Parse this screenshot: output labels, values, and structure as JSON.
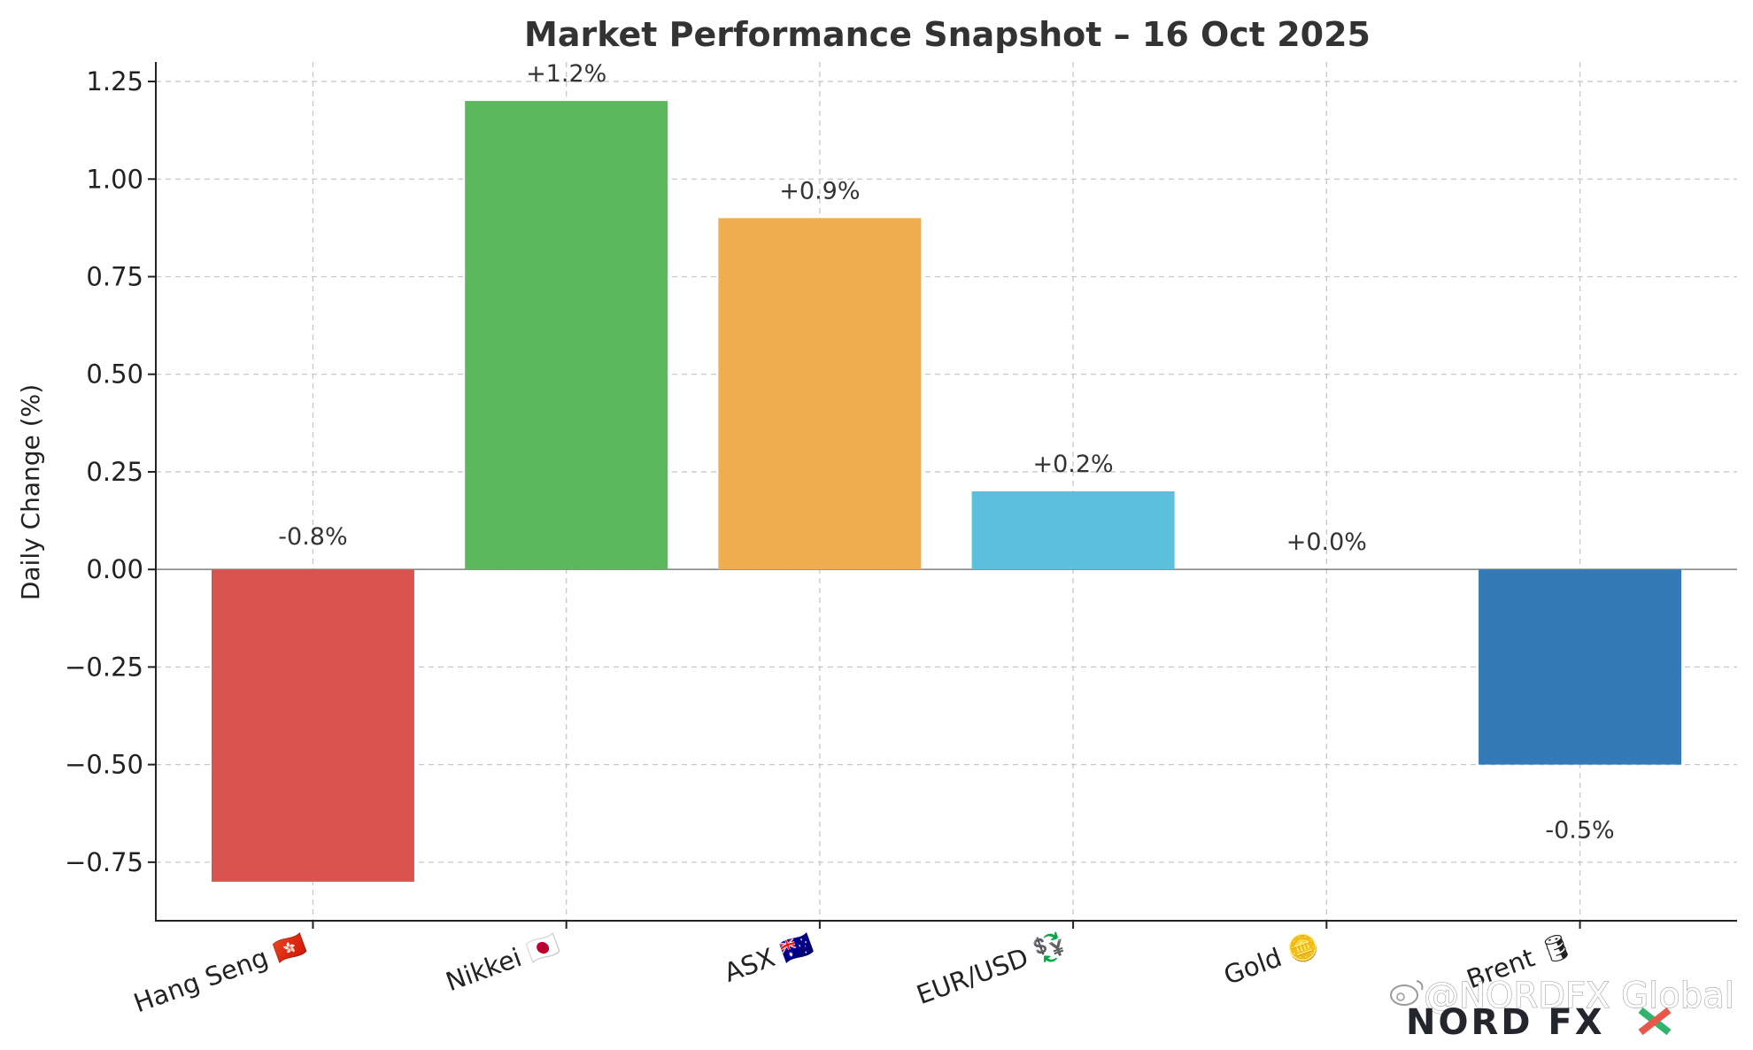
{
  "chart_data": {
    "type": "bar",
    "title": "Market Performance Snapshot – 16 Oct 2025",
    "xlabel": "",
    "ylabel": "Daily Change (%)",
    "categories": [
      "Hang Seng 🇭🇰",
      "Nikkei 🇯🇵",
      "ASX 🇦🇺",
      "EUR/USD 💱",
      "Gold 🪙",
      "Brent 🛢"
    ],
    "values": [
      -0.8,
      1.2,
      0.9,
      0.2,
      0.0,
      -0.5
    ],
    "data_labels": [
      "-0.8%",
      "+1.2%",
      "+0.9%",
      "+0.2%",
      "+0.0%",
      "-0.5%"
    ],
    "colors": [
      "#d9534f",
      "#5cb85c",
      "#f0ad4e",
      "#5bc0de",
      "#808080",
      "#337ab7"
    ],
    "ylim": [
      -0.9,
      1.3
    ],
    "yticks": [
      -0.75,
      -0.5,
      -0.25,
      0.0,
      0.25,
      0.5,
      0.75,
      1.0,
      1.25
    ],
    "ytick_labels": [
      "−0.75",
      "−0.50",
      "−0.25",
      "0.00",
      "0.25",
      "0.50",
      "0.75",
      "1.00",
      "1.25"
    ],
    "grid": true,
    "zero_line": true
  },
  "watermark": {
    "text": "@NORDFX Global",
    "logo": "NORD FX",
    "icon": "weibo-icon"
  }
}
